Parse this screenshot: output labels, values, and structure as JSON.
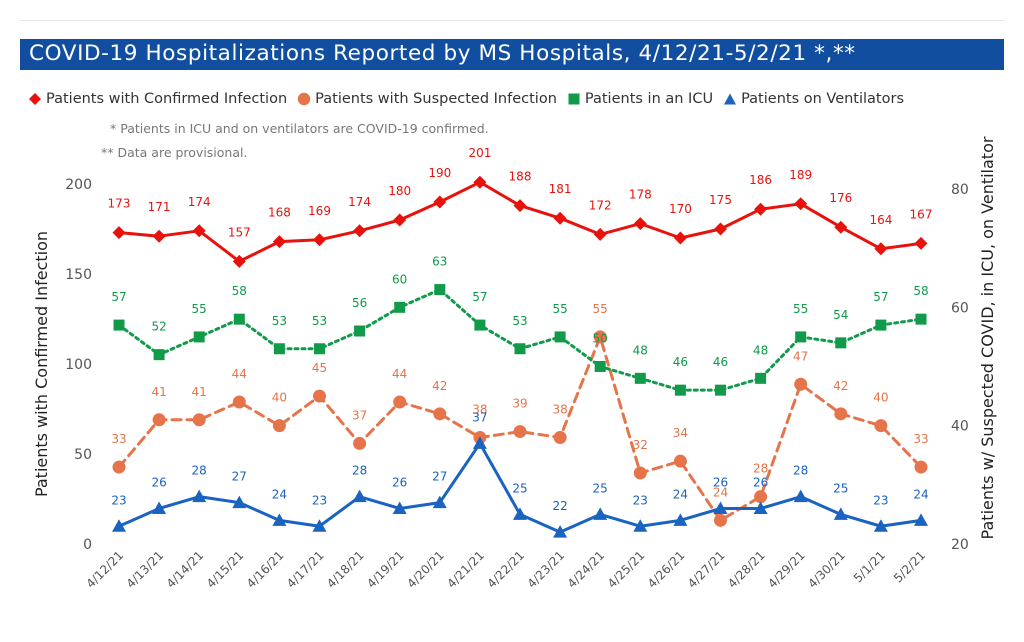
{
  "title": "COVID-19 Hospitalizations Reported by MS Hospitals, 4/12/21-5/2/21 *,**",
  "notes": [
    "* Patients in ICU and on ventilators are COVID-19 confirmed.",
    "** Data are provisional."
  ],
  "legend": [
    {
      "label": "Patients with Confirmed Infection",
      "icon": "diamond-icon",
      "color": "#e8120c"
    },
    {
      "label": "Patients with Suspected Infection",
      "icon": "circle-icon",
      "color": "#e5744a"
    },
    {
      "label": "Patients in an ICU",
      "icon": "square-icon",
      "color": "#109a4a"
    },
    {
      "label": "Patients on Ventilators",
      "icon": "triangle-icon",
      "color": "#1a63c0"
    }
  ],
  "chart_data": {
    "type": "line",
    "categories": [
      "4/12/21",
      "4/13/21",
      "4/14/21",
      "4/15/21",
      "4/16/21",
      "4/17/21",
      "4/18/21",
      "4/19/21",
      "4/20/21",
      "4/21/21",
      "4/22/21",
      "4/23/21",
      "4/24/21",
      "4/25/21",
      "4/26/21",
      "4/27/21",
      "4/28/21",
      "4/29/21",
      "4/30/21",
      "5/1/21",
      "5/2/21"
    ],
    "ylabel": "Patients with Confirmed Infection",
    "y2label": "Patients w/ Suspected COVID, in ICU, on Ventilator",
    "ylim": [
      0,
      200
    ],
    "y2lim": [
      20,
      80
    ],
    "yticks": [
      0,
      50,
      100,
      150,
      200
    ],
    "y2ticks": [
      20,
      40,
      60,
      80
    ],
    "grid": false,
    "legend_position": "top",
    "series": [
      {
        "name": "Patients with Confirmed Infection",
        "axis": "left",
        "style": "solid",
        "marker": "diamond",
        "color": "#e8120c",
        "values": [
          173,
          171,
          174,
          157,
          168,
          169,
          174,
          180,
          190,
          201,
          188,
          181,
          172,
          178,
          170,
          175,
          186,
          189,
          176,
          164,
          167
        ]
      },
      {
        "name": "Patients with Suspected Infection",
        "axis": "right",
        "style": "dashed",
        "marker": "circle",
        "color": "#e5744a",
        "values": [
          33,
          41,
          41,
          44,
          40,
          45,
          37,
          44,
          42,
          38,
          39,
          38,
          55,
          32,
          34,
          24,
          28,
          47,
          42,
          40,
          33
        ]
      },
      {
        "name": "Patients in an ICU",
        "axis": "right",
        "style": "dotted",
        "marker": "square",
        "color": "#109a4a",
        "values": [
          57,
          52,
          55,
          58,
          53,
          53,
          56,
          60,
          63,
          57,
          53,
          55,
          50,
          48,
          46,
          46,
          48,
          55,
          54,
          57,
          58
        ]
      },
      {
        "name": "Patients on Ventilators",
        "axis": "right",
        "style": "solid",
        "marker": "triangle",
        "color": "#1a63c0",
        "values": [
          23,
          26,
          28,
          27,
          24,
          23,
          28,
          26,
          27,
          37,
          25,
          22,
          25,
          23,
          24,
          26,
          26,
          28,
          25,
          23,
          24
        ]
      }
    ]
  }
}
